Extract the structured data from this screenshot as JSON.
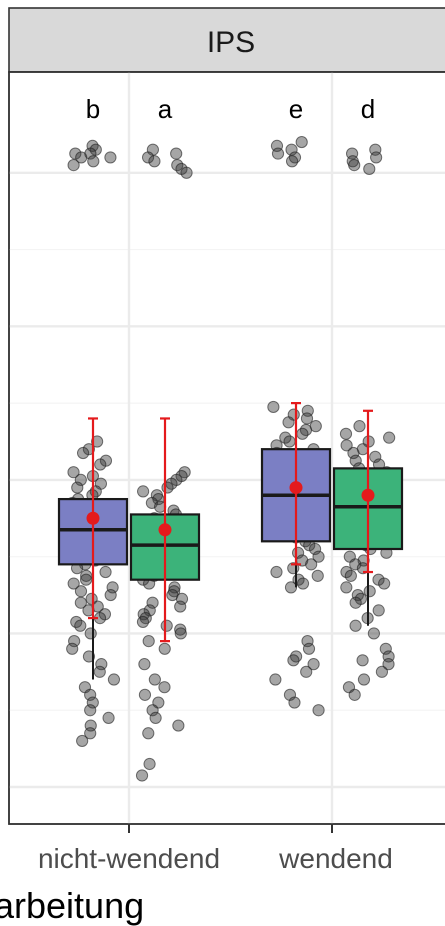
{
  "chart_data": {
    "type": "box",
    "facet": "IPS",
    "xlabel": "arbeitung",
    "categories": [
      "nicht-wendend",
      "wendend"
    ],
    "ylim": [
      0,
      100
    ],
    "grid": true,
    "colors": {
      "blue": "#7b7fc4",
      "green": "#3cb37a",
      "mean": "#e41a1c",
      "point": "#3a3a3a"
    },
    "groups": [
      {
        "category": "nicht-wendend",
        "series": "blue",
        "letter": "b",
        "box": {
          "whisker_low": 14,
          "q1": 29,
          "median": 33.5,
          "q3": 37.5,
          "whisker_high": 44
        },
        "mean": 35,
        "mean_err": [
          22,
          48
        ],
        "points": [
          83.5,
          83,
          82.5,
          82,
          82.5,
          81.5,
          81,
          82,
          45,
          44,
          43.5,
          42.5,
          42,
          41,
          40.5,
          40,
          39.5,
          39,
          38.5,
          38,
          37.5,
          37,
          36.5,
          36,
          35.5,
          35,
          34.5,
          34,
          33.5,
          33,
          32.5,
          32,
          31.5,
          31,
          30.5,
          30,
          29.5,
          29,
          28.5,
          28,
          27.5,
          27,
          26.5,
          26,
          25.5,
          25,
          24.5,
          24,
          23.5,
          23,
          22.5,
          22,
          21.5,
          21,
          20,
          19,
          18,
          17,
          16,
          15,
          14,
          13,
          12,
          11,
          10,
          9,
          8,
          7,
          6
        ]
      },
      {
        "category": "nicht-wendend",
        "series": "green",
        "letter": "a",
        "box": {
          "whisker_low": 21,
          "q1": 27,
          "median": 31.5,
          "q3": 35.5,
          "whisker_high": 41
        },
        "mean": 33.5,
        "mean_err": [
          19,
          48
        ],
        "points": [
          83,
          82.5,
          82,
          81.5,
          81,
          80.5,
          80,
          41,
          40.5,
          40,
          39.5,
          39,
          38.5,
          38,
          37.5,
          37,
          36.5,
          36,
          35.5,
          35,
          34.5,
          34,
          33.5,
          33,
          32.5,
          32,
          31.5,
          31,
          30.5,
          30,
          29.5,
          29,
          28.5,
          28,
          27.5,
          27,
          26.5,
          26,
          25.5,
          25,
          24.5,
          24,
          23.5,
          23,
          22.5,
          22,
          21.5,
          21,
          20.5,
          20,
          19,
          18,
          16,
          14,
          13,
          12,
          11,
          10,
          9,
          8,
          7,
          3,
          1.5
        ]
      },
      {
        "category": "wendend",
        "series": "blue",
        "letter": "e",
        "box": {
          "whisker_low": 26,
          "q1": 32,
          "median": 38,
          "q3": 44,
          "whisker_high": 49
        },
        "mean": 39,
        "mean_err": [
          29,
          50
        ],
        "points": [
          84,
          83.5,
          83,
          82.5,
          82,
          81.5,
          49.5,
          49,
          48.5,
          48,
          47.5,
          47,
          46.5,
          46,
          45.5,
          45,
          44.5,
          44,
          43.5,
          43,
          42.5,
          42,
          41.5,
          41,
          40.5,
          40,
          39.5,
          39,
          38.5,
          38,
          37.5,
          37,
          36.5,
          36,
          35.5,
          35,
          34.5,
          34,
          33.5,
          33,
          32.5,
          32,
          31.5,
          31,
          30.5,
          30,
          29.5,
          29,
          28.5,
          28,
          27.5,
          27,
          26.5,
          26,
          19,
          18,
          17,
          16.5,
          16,
          15,
          14,
          12,
          11,
          10
        ]
      },
      {
        "category": "wendend",
        "series": "green",
        "letter": "d",
        "box": {
          "whisker_low": 21,
          "q1": 31,
          "median": 36.5,
          "q3": 41.5,
          "whisker_high": 47
        },
        "mean": 38,
        "mean_err": [
          28,
          49
        ],
        "points": [
          83,
          82.5,
          82,
          81.5,
          81,
          80.5,
          47,
          46,
          45.5,
          45,
          44.5,
          44,
          43.5,
          43,
          42.5,
          42,
          41.5,
          41,
          40.5,
          40,
          39.5,
          39,
          38.5,
          38,
          37.5,
          37,
          36.5,
          36,
          35.5,
          35,
          34.5,
          34,
          33.5,
          33,
          32.5,
          32,
          31.5,
          31,
          30.5,
          30,
          29.5,
          29,
          28.5,
          28,
          27.5,
          27,
          26.5,
          26,
          25.5,
          25,
          24.5,
          24,
          23,
          22,
          21,
          20,
          18,
          17,
          16.5,
          16,
          15,
          14,
          13,
          12
        ]
      }
    ]
  }
}
